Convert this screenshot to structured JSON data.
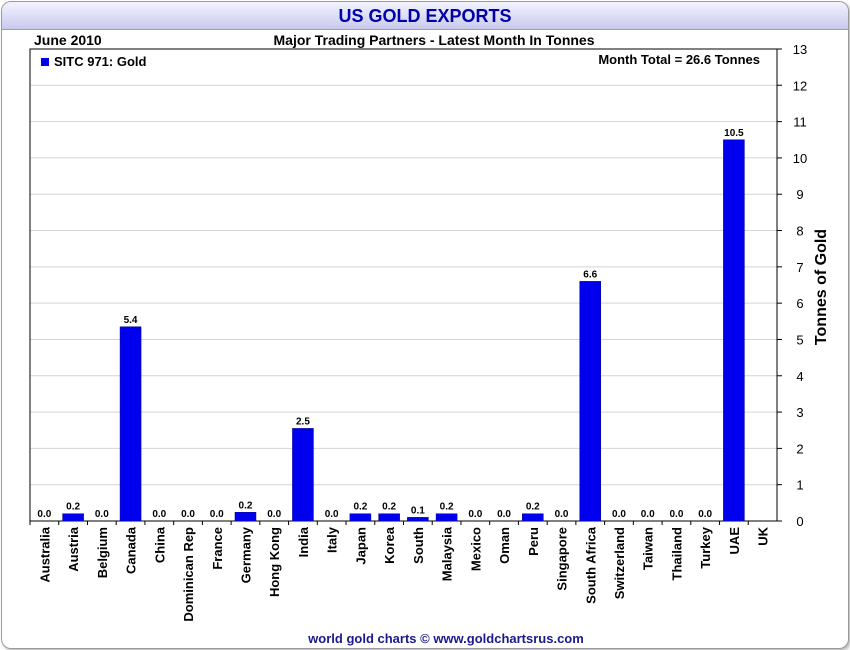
{
  "colors": {
    "bar": "#0000ee",
    "title_text": "#0000aa",
    "credit_text": "#1a1a8c"
  },
  "chart_data": {
    "type": "bar",
    "title": "US GOLD EXPORTS",
    "date_label": "June 2010",
    "subtitle": "Major Trading Partners - Latest Month In Tonnes",
    "annotation": "Month Total = 26.6 Tonnes",
    "legend": "SITC 971: Gold",
    "legend_position": "top-left",
    "ylabel": "Tonnes of Gold",
    "ylim": [
      0,
      13
    ],
    "yticks": [
      "0",
      "1",
      "2",
      "3",
      "4",
      "5",
      "6",
      "7",
      "8",
      "9",
      "10",
      "11",
      "12",
      "13"
    ],
    "grid": true,
    "categories": [
      "Australia",
      "Austria",
      "Belgium",
      "Canada",
      "China",
      "Dominican Rep",
      "France",
      "Germany",
      "Hong Kong",
      "India",
      "Italy",
      "Japan",
      "Korea",
      "South",
      "Malaysia",
      "Mexico",
      "Oman",
      "Peru",
      "Singapore",
      "South Africa",
      "Switzerland",
      "Taiwan",
      "Thailand",
      "Turkey",
      "UAE",
      "UK"
    ],
    "values": [
      0.0,
      0.2,
      0.0,
      5.35,
      0.0,
      0.0,
      0.0,
      0.24,
      0.0,
      2.55,
      0.0,
      0.2,
      0.2,
      0.1,
      0.2,
      0.0,
      0.0,
      0.2,
      0.0,
      6.6,
      0.0,
      0.0,
      0.0,
      0.0,
      10.5,
      null
    ],
    "data_labels": [
      "0.0",
      "0.2",
      "0.0",
      "5.4",
      "0.0",
      "0.0",
      "0.0",
      "0.2",
      "0.0",
      "2.5",
      "0.0",
      "0.2",
      "0.2",
      "0.1",
      "0.2",
      "0.0",
      "0.0",
      "0.2",
      "0.0",
      "6.6",
      "0.0",
      "0.0",
      "0.0",
      "0.0",
      "10.5",
      ""
    ],
    "credit": "world gold charts © www.goldchartsrus.com"
  }
}
